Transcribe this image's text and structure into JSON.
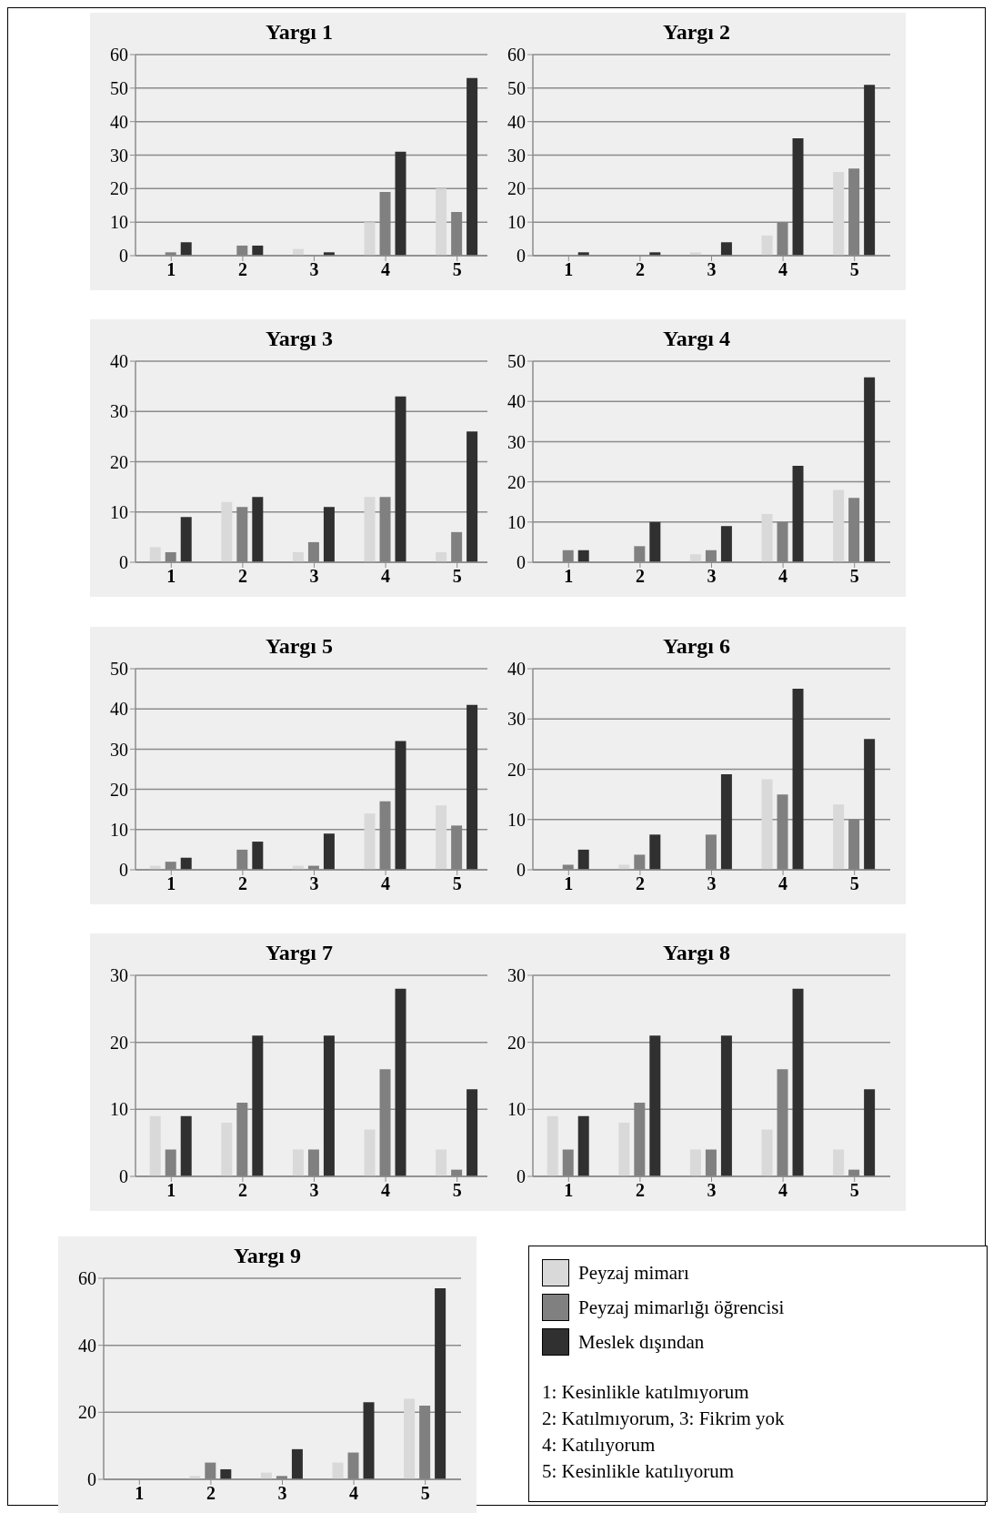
{
  "chart_data": [
    {
      "type": "bar",
      "title": "Yargı 1",
      "categories": [
        "1",
        "2",
        "3",
        "4",
        "5"
      ],
      "ylim": [
        0,
        60
      ],
      "yticks": [
        0,
        10,
        20,
        30,
        40,
        50,
        60
      ],
      "grid": "y",
      "series": [
        {
          "color": "#d9d9d9",
          "values": [
            0,
            0,
            2,
            10,
            20
          ]
        },
        {
          "color": "#808080",
          "values": [
            1,
            3,
            0,
            19,
            13
          ]
        },
        {
          "color": "#303030",
          "values": [
            4,
            3,
            1,
            31,
            53
          ]
        }
      ]
    },
    {
      "type": "bar",
      "title": "Yargı 2",
      "categories": [
        "1",
        "2",
        "3",
        "4",
        "5"
      ],
      "ylim": [
        0,
        60
      ],
      "yticks": [
        0,
        10,
        20,
        30,
        40,
        50,
        60
      ],
      "grid": "y",
      "series": [
        {
          "color": "#d9d9d9",
          "values": [
            0,
            0,
            1,
            6,
            25
          ]
        },
        {
          "color": "#808080",
          "values": [
            0,
            0,
            0,
            10,
            26
          ]
        },
        {
          "color": "#303030",
          "values": [
            1,
            1,
            4,
            35,
            51
          ]
        }
      ]
    },
    {
      "type": "bar",
      "title": "Yargı 3",
      "categories": [
        "1",
        "2",
        "3",
        "4",
        "5"
      ],
      "ylim": [
        0,
        40
      ],
      "yticks": [
        0,
        10,
        20,
        30,
        40
      ],
      "grid": "y",
      "series": [
        {
          "color": "#d9d9d9",
          "values": [
            3,
            12,
            2,
            13,
            2
          ]
        },
        {
          "color": "#808080",
          "values": [
            2,
            11,
            4,
            13,
            6
          ]
        },
        {
          "color": "#303030",
          "values": [
            9,
            13,
            11,
            33,
            26
          ]
        }
      ]
    },
    {
      "type": "bar",
      "title": "Yargı 4",
      "categories": [
        "1",
        "2",
        "3",
        "4",
        "5"
      ],
      "ylim": [
        0,
        50
      ],
      "yticks": [
        0,
        10,
        20,
        30,
        40,
        50
      ],
      "grid": "y",
      "series": [
        {
          "color": "#d9d9d9",
          "values": [
            0,
            0,
            2,
            12,
            18
          ]
        },
        {
          "color": "#808080",
          "values": [
            3,
            4,
            3,
            10,
            16
          ]
        },
        {
          "color": "#303030",
          "values": [
            3,
            10,
            9,
            24,
            46
          ]
        }
      ]
    },
    {
      "type": "bar",
      "title": "Yargı 5",
      "categories": [
        "1",
        "2",
        "3",
        "4",
        "5"
      ],
      "ylim": [
        0,
        50
      ],
      "yticks": [
        0,
        10,
        20,
        30,
        40,
        50
      ],
      "grid": "y",
      "series": [
        {
          "color": "#d9d9d9",
          "values": [
            1,
            0,
            1,
            14,
            16
          ]
        },
        {
          "color": "#808080",
          "values": [
            2,
            5,
            1,
            17,
            11
          ]
        },
        {
          "color": "#303030",
          "values": [
            3,
            7,
            9,
            32,
            41
          ]
        }
      ]
    },
    {
      "type": "bar",
      "title": "Yargı 6",
      "categories": [
        "1",
        "2",
        "3",
        "4",
        "5"
      ],
      "ylim": [
        0,
        40
      ],
      "yticks": [
        0,
        10,
        20,
        30,
        40
      ],
      "grid": "y",
      "series": [
        {
          "color": "#d9d9d9",
          "values": [
            0,
            1,
            0,
            18,
            13
          ]
        },
        {
          "color": "#808080",
          "values": [
            1,
            3,
            7,
            15,
            10
          ]
        },
        {
          "color": "#303030",
          "values": [
            4,
            7,
            19,
            36,
            26
          ]
        }
      ]
    },
    {
      "type": "bar",
      "title": "Yargı 7",
      "categories": [
        "1",
        "2",
        "3",
        "4",
        "5"
      ],
      "ylim": [
        0,
        30
      ],
      "yticks": [
        0,
        10,
        20,
        30
      ],
      "grid": "y",
      "series": [
        {
          "color": "#d9d9d9",
          "values": [
            9,
            8,
            4,
            7,
            4
          ]
        },
        {
          "color": "#808080",
          "values": [
            4,
            11,
            4,
            16,
            1
          ]
        },
        {
          "color": "#303030",
          "values": [
            9,
            21,
            21,
            28,
            13
          ]
        }
      ]
    },
    {
      "type": "bar",
      "title": "Yargı 8",
      "categories": [
        "1",
        "2",
        "3",
        "4",
        "5"
      ],
      "ylim": [
        0,
        30
      ],
      "yticks": [
        0,
        10,
        20,
        30
      ],
      "grid": "y",
      "series": [
        {
          "color": "#d9d9d9",
          "values": [
            9,
            8,
            4,
            7,
            4
          ]
        },
        {
          "color": "#808080",
          "values": [
            4,
            11,
            4,
            16,
            1
          ]
        },
        {
          "color": "#303030",
          "values": [
            9,
            21,
            21,
            28,
            13
          ]
        }
      ]
    },
    {
      "type": "bar",
      "title": "Yargı 9",
      "categories": [
        "1",
        "2",
        "3",
        "4",
        "5"
      ],
      "ylim": [
        0,
        60
      ],
      "yticks": [
        0,
        20,
        40,
        60
      ],
      "grid": "y",
      "legend": "right",
      "annotations": [
        "1: Kesinlikle katılmıyorum",
        "2: Katılmıyorum, 3: Fikrim yok",
        "4: Katılıyorum",
        "5: Kesinlikle katılıyorum"
      ],
      "series": [
        {
          "name": "Peyzaj mimarı",
          "color": "#d9d9d9",
          "values": [
            0,
            1,
            2,
            5,
            24
          ]
        },
        {
          "name": "Peyzaj mimarlığı öğrencisi",
          "color": "#808080",
          "values": [
            0,
            5,
            1,
            8,
            22
          ]
        },
        {
          "name": "Meslek dışından",
          "color": "#303030",
          "values": [
            0,
            3,
            9,
            23,
            57
          ]
        }
      ]
    }
  ]
}
